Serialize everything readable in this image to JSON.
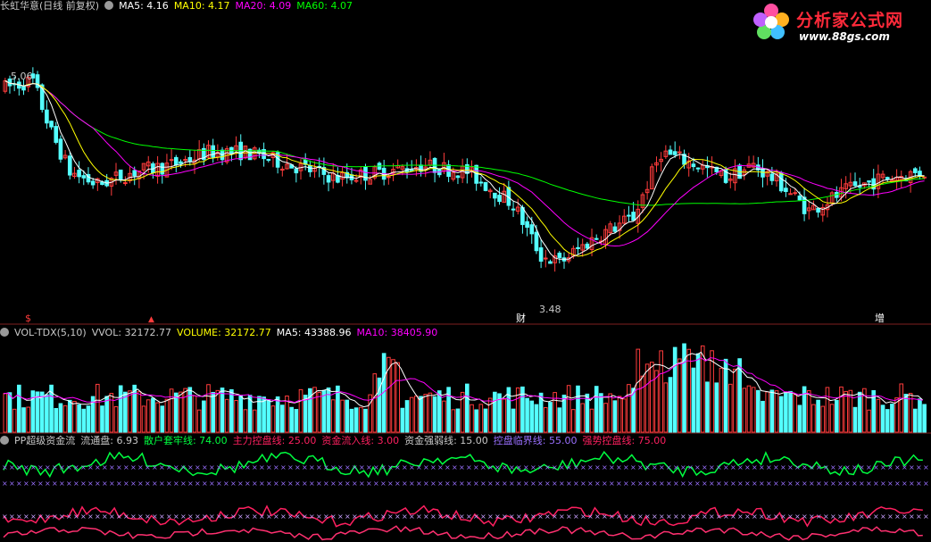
{
  "main_header": {
    "title": "长虹华意(日线 前复权)",
    "ma5": "MA5: 4.16",
    "ma10": "MA10: 4.17",
    "ma20": "MA20: 4.09",
    "ma60": "MA60: 4.07"
  },
  "vol_header": {
    "name": "VOL-TDX(5,10)",
    "vvol": "VVOL: 32172.77",
    "volume": "VOLUME: 32172.77",
    "ma5": "MA5: 43388.96",
    "ma10": "MA10: 38405.90"
  },
  "pp_header": {
    "name": "PP超级资金流",
    "float": "流通盘: 6.93",
    "retail": "散户套牢线: 74.00",
    "main_control": "主力控盘线: 25.00",
    "inflow": "资金流入线: 3.00",
    "strength": "资金强弱线: 15.00",
    "critical": "控盘临界线: 55.00",
    "strong": "强势控盘线: 75.00"
  },
  "logo": {
    "text": "分析家公式网",
    "url": "www.88gs.com"
  },
  "markers": {
    "high_label": "5.06",
    "low_label": "3.48",
    "event_cai": "财",
    "event_zeng": "增",
    "event_s": "$",
    "event_up": "▲"
  },
  "colors": {
    "up": "#ff3c3c",
    "down": "#54ffff",
    "ma5": "#ffffff",
    "ma10": "#ffff00",
    "ma20": "#ff00ff",
    "ma60": "#00ff00",
    "retail_line": "#00ff40",
    "main_line": "#ff2060",
    "x_line": "#9a70ff",
    "red_line2": "#ff3070"
  },
  "chart_data": [
    {
      "type": "candlestick",
      "title": "长虹华意(日线 前复权)",
      "price_range": [
        3.2,
        5.5
      ],
      "annotated_high": 5.06,
      "annotated_low": 3.48,
      "series": [
        {
          "name": "MA5",
          "last": 4.16
        },
        {
          "name": "MA10",
          "last": 4.17
        },
        {
          "name": "MA20",
          "last": 4.09
        },
        {
          "name": "MA60",
          "last": 4.07
        }
      ]
    },
    {
      "type": "bar",
      "title": "VOL-TDX(5,10)",
      "series": [
        {
          "name": "VOLUME",
          "last": 32172.77
        },
        {
          "name": "MA5",
          "last": 43388.96
        },
        {
          "name": "MA10",
          "last": 38405.9
        }
      ]
    },
    {
      "type": "line",
      "title": "PP超级资金流",
      "series": [
        {
          "name": "散户套牢线",
          "last": 74.0
        },
        {
          "name": "主力控盘线",
          "last": 25.0
        },
        {
          "name": "资金流入线",
          "last": 3.0
        },
        {
          "name": "资金强弱线",
          "last": 15.0
        },
        {
          "name": "控盘临界线",
          "last": 55.0
        },
        {
          "name": "强势控盘线",
          "last": 75.0
        }
      ]
    }
  ]
}
